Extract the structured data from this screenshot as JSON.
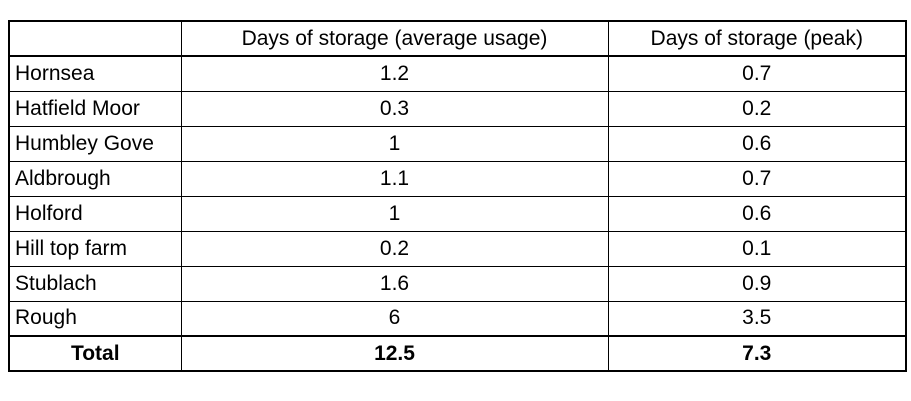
{
  "table": {
    "columns": [
      "Days of storage (average usage)",
      "Days of storage (peak)"
    ],
    "rows": [
      [
        "Hornsea",
        1.2,
        0.7
      ],
      [
        "Hatfield Moor",
        0.3,
        0.2
      ],
      [
        "Humbley Gove",
        1,
        0.6
      ],
      [
        "Aldbrough",
        1.1,
        0.7
      ],
      [
        "Holford",
        1,
        0.6
      ],
      [
        "Hill top farm",
        0.2,
        0.1
      ],
      [
        "Stublach",
        1.6,
        0.9
      ],
      [
        "Rough",
        6,
        3.5
      ]
    ],
    "total": [
      "Total",
      12.5,
      7.3
    ]
  }
}
